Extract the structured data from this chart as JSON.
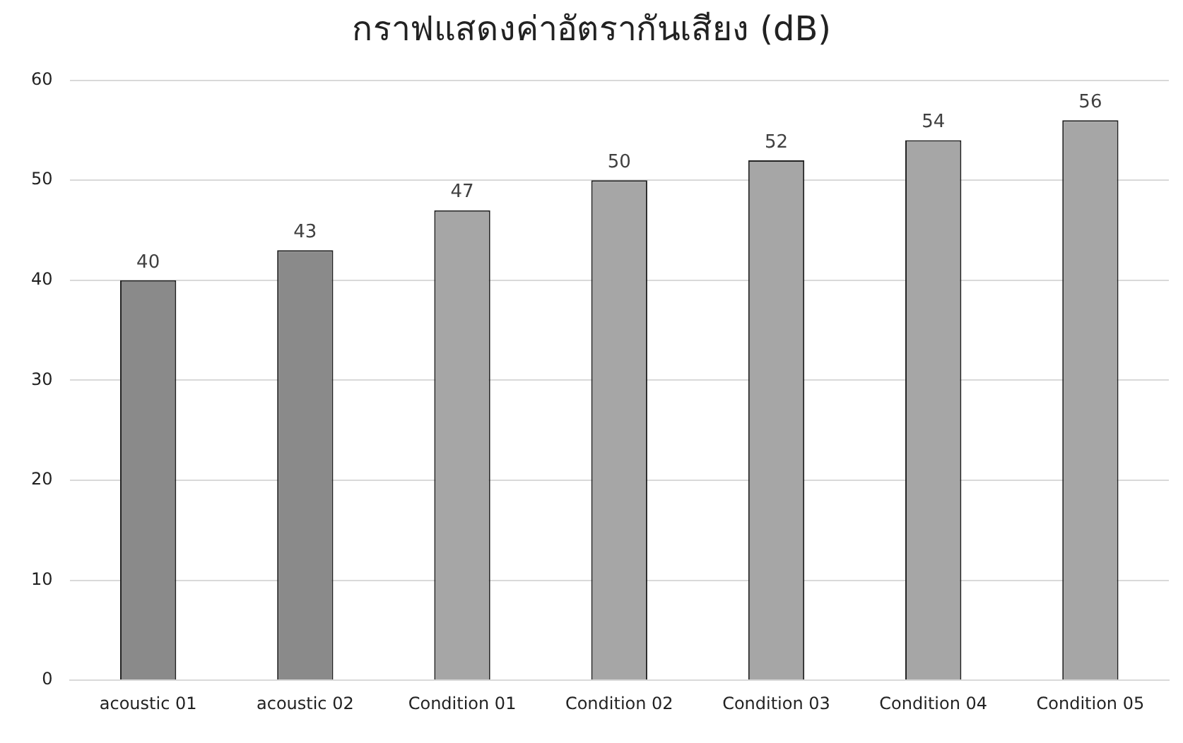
{
  "chart_data": {
    "type": "bar",
    "title": "กราฟแสดงค่าอัตรากันเสียง (dB)",
    "categories": [
      "acoustic 01",
      "acoustic 02",
      "Condition 01",
      "Condition 02",
      "Condition 03",
      "Condition 04",
      "Condition 05"
    ],
    "values": [
      40,
      43,
      47,
      50,
      52,
      54,
      56
    ],
    "colors": [
      "#8a8a8a",
      "#8a8a8a",
      "#a6a6a6",
      "#a6a6a6",
      "#a6a6a6",
      "#a6a6a6",
      "#a6a6a6"
    ],
    "ylim": [
      0,
      60
    ],
    "yticks": [
      0,
      10,
      20,
      30,
      40,
      50,
      60
    ],
    "grid": "y",
    "data_labels": true
  }
}
